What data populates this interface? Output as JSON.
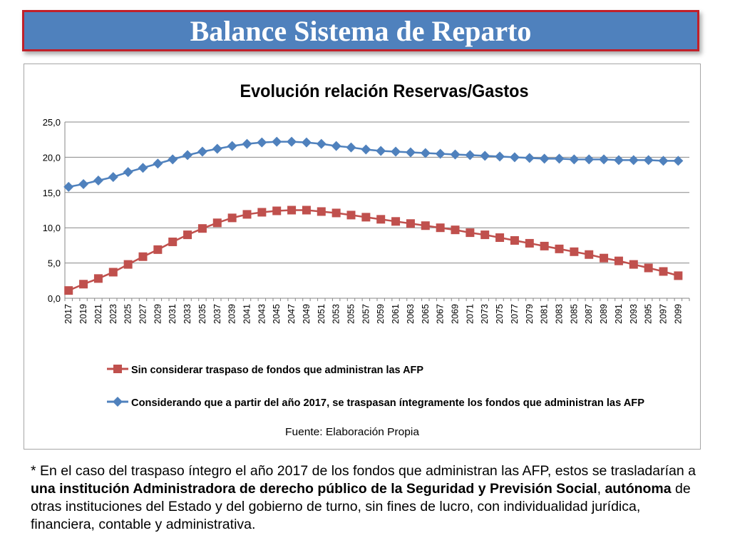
{
  "header": {
    "title": "Balance Sistema de Reparto"
  },
  "chart_data": {
    "type": "line",
    "title": "Evolución relación Reservas/Gastos",
    "source": "Fuente: Elaboración Propia",
    "ylim": [
      0,
      25
    ],
    "yticks": [
      "0,0",
      "5,0",
      "10,0",
      "15,0",
      "20,0",
      "25,0"
    ],
    "ytick_values": [
      0,
      5,
      10,
      15,
      20,
      25
    ],
    "x_start": 2017,
    "x_end": 2100,
    "x": [
      2017,
      2019,
      2021,
      2023,
      2025,
      2027,
      2029,
      2031,
      2033,
      2035,
      2037,
      2039,
      2041,
      2043,
      2045,
      2047,
      2049,
      2051,
      2053,
      2055,
      2057,
      2059,
      2061,
      2063,
      2065,
      2067,
      2069,
      2071,
      2073,
      2075,
      2077,
      2079,
      2081,
      2083,
      2085,
      2087,
      2089,
      2091,
      2093,
      2095,
      2097,
      2099
    ],
    "xtick_labels": [
      "2017",
      "2019",
      "2021",
      "2023",
      "2025",
      "2027",
      "2029",
      "2031",
      "2033",
      "2035",
      "2037",
      "2039",
      "2041",
      "2043",
      "2045",
      "2047",
      "2049",
      "2051",
      "2053",
      "2055",
      "2057",
      "2059",
      "2061",
      "2063",
      "2065",
      "2067",
      "2069",
      "2071",
      "2073",
      "2075",
      "2077",
      "2079",
      "2081",
      "2083",
      "2085",
      "2087",
      "2089",
      "2091",
      "2093",
      "2095",
      "2097",
      "2099"
    ],
    "grid": true,
    "legend_placement": "bottom",
    "series": [
      {
        "name": "Sin considerar traspaso de fondos que administran las AFP",
        "marker": "square",
        "color": "#c0504d",
        "values": [
          1.1,
          2.0,
          2.8,
          3.7,
          4.8,
          5.9,
          6.9,
          8.0,
          9.0,
          9.9,
          10.7,
          11.4,
          11.9,
          12.2,
          12.4,
          12.5,
          12.5,
          12.3,
          12.1,
          11.8,
          11.5,
          11.2,
          10.9,
          10.6,
          10.3,
          10.0,
          9.7,
          9.3,
          9.0,
          8.6,
          8.2,
          7.8,
          7.4,
          7.0,
          6.6,
          6.2,
          5.7,
          5.3,
          4.8,
          4.3,
          3.8,
          3.2
        ]
      },
      {
        "name": "Considerando que a partir del año 2017, se traspasan íntegramente los fondos que administran las AFP",
        "marker": "diamond",
        "color": "#4f81bd",
        "values": [
          15.8,
          16.2,
          16.7,
          17.2,
          17.9,
          18.5,
          19.1,
          19.7,
          20.3,
          20.8,
          21.2,
          21.6,
          21.9,
          22.1,
          22.2,
          22.2,
          22.1,
          21.9,
          21.6,
          21.4,
          21.1,
          20.9,
          20.8,
          20.7,
          20.6,
          20.5,
          20.4,
          20.3,
          20.2,
          20.1,
          20.0,
          19.9,
          19.8,
          19.8,
          19.7,
          19.7,
          19.7,
          19.6,
          19.6,
          19.6,
          19.5,
          19.5
        ]
      }
    ]
  },
  "footnote": {
    "p1": "* En el caso del traspaso íntegro el año 2017 de los fondos que administran las AFP, estos se trasladarían a ",
    "b1": "una institución Administradora de derecho público de la Seguridad y Previsión Social",
    "p2": ", ",
    "b2": "autónoma",
    "p3": " de otras instituciones del Estado y del gobierno de turno, sin fines de lucro, con individualidad jurídica, financiera, contable y administrativa."
  }
}
